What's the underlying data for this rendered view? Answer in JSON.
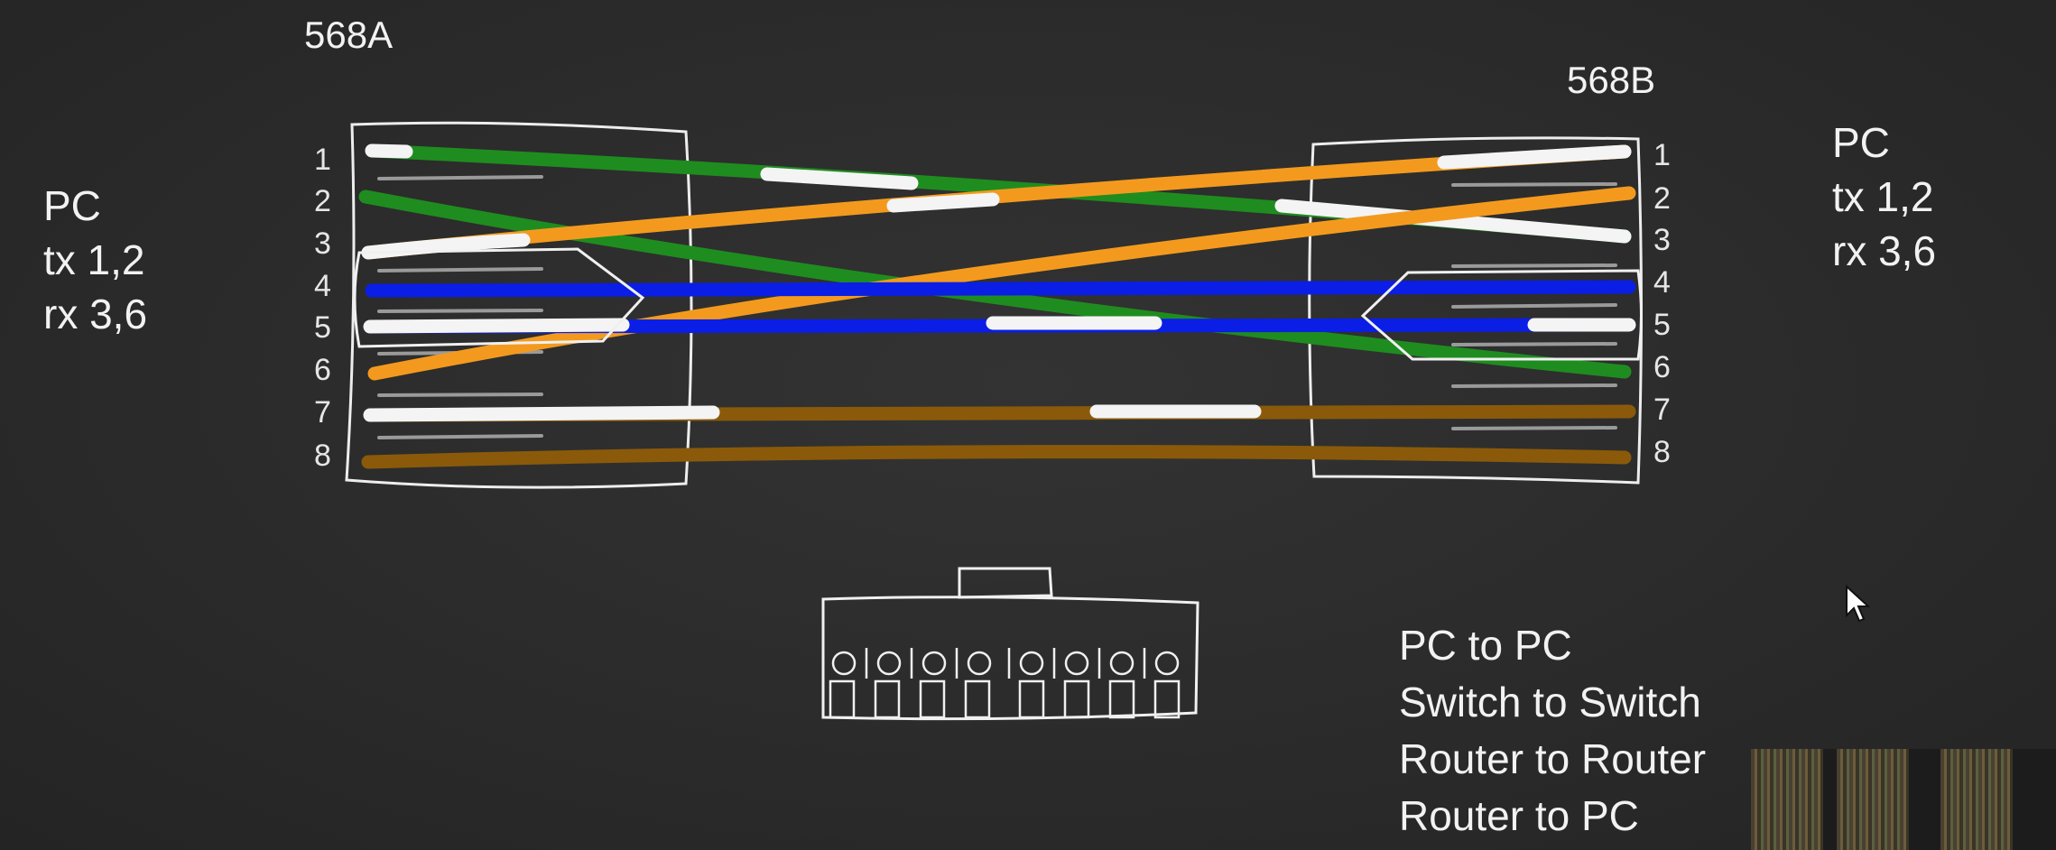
{
  "left_connector": {
    "standard": "568A",
    "device": [
      "PC",
      "tx 1,2",
      "rx 3,6"
    ],
    "pins": [
      "1",
      "2",
      "3",
      "4",
      "5",
      "6",
      "7",
      "8"
    ]
  },
  "right_connector": {
    "standard": "568B",
    "device": [
      "PC",
      "tx 1,2",
      "rx 3,6"
    ],
    "pins": [
      "1",
      "2",
      "3",
      "4",
      "5",
      "6",
      "7",
      "8"
    ]
  },
  "uses": [
    "PC to PC",
    "Switch to Switch",
    "Router to Router",
    "Router to PC"
  ],
  "colors": {
    "green": "#1f8c1f",
    "orange": "#f39a1e",
    "blue": "#0a1ee6",
    "brown": "#8a5a0a",
    "white": "#f4f4f4",
    "chalk": "#f0f0f0"
  },
  "icons": [
    "mouse-cursor-icon",
    "rj45-jack-icon"
  ]
}
